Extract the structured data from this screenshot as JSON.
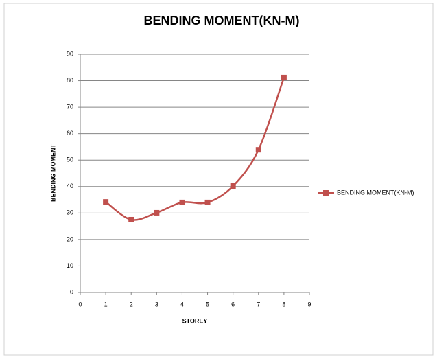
{
  "chart_data": {
    "type": "line",
    "title": "BENDING MOMENT(KN-M)",
    "x_label": "STOREY",
    "y_label": "BENDING MOMENT",
    "x": [
      1,
      2,
      3,
      4,
      5,
      6,
      7,
      8
    ],
    "series": [
      {
        "name": "BENDING MOMENT(KN-M)",
        "color": "#c0504d",
        "values": [
          34.2,
          27.5,
          30.1,
          34,
          34,
          40.2,
          53.9,
          81.2
        ]
      }
    ],
    "xlim": [
      0,
      9
    ],
    "xticks": [
      0,
      1,
      2,
      3,
      4,
      5,
      6,
      7,
      8,
      9
    ],
    "ylim": [
      0,
      90
    ],
    "yticks": [
      0,
      10,
      20,
      30,
      40,
      50,
      60,
      70,
      80,
      90
    ],
    "grid": true,
    "smooth": true,
    "legend": "right"
  }
}
